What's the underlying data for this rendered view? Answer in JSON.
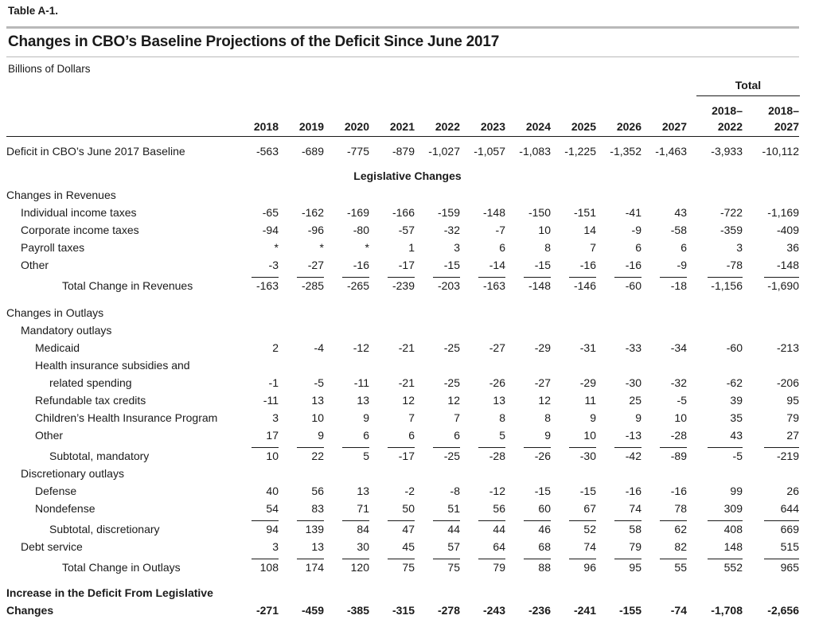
{
  "table_label": "Table A-1.",
  "title": "Changes in CBO’s Baseline Projections of the Deficit Since June 2017",
  "units": "Billions of Dollars",
  "total_header": "Total",
  "columns": [
    "2018",
    "2019",
    "2020",
    "2021",
    "2022",
    "2023",
    "2024",
    "2025",
    "2026",
    "2027"
  ],
  "total_columns": [
    {
      "line1": "2018–",
      "line2": "2022"
    },
    {
      "line1": "2018–",
      "line2": "2027"
    }
  ],
  "section_legislative": "Legislative Changes",
  "rows": [
    {
      "id": "baseline",
      "label": "Deficit in CBO’s June 2017 Baseline",
      "values": [
        "-563",
        "-689",
        "-775",
        "-879",
        "-1,027",
        "-1,057",
        "-1,083",
        "-1,225",
        "-1,352",
        "-1,463",
        "-3,933",
        "-10,112"
      ]
    },
    {
      "id": "rev-head",
      "label": "Changes in Revenues"
    },
    {
      "id": "rev-individual",
      "label": "Individual income taxes",
      "values": [
        "-65",
        "-162",
        "-169",
        "-166",
        "-159",
        "-148",
        "-150",
        "-151",
        "-41",
        "43",
        "-722",
        "-1,169"
      ]
    },
    {
      "id": "rev-corporate",
      "label": "Corporate income taxes",
      "values": [
        "-94",
        "-96",
        "-80",
        "-57",
        "-32",
        "-7",
        "10",
        "14",
        "-9",
        "-58",
        "-359",
        "-409"
      ]
    },
    {
      "id": "rev-payroll",
      "label": "Payroll taxes",
      "values": [
        "*",
        "*",
        "*",
        "1",
        "3",
        "6",
        "8",
        "7",
        "6",
        "6",
        "3",
        "36"
      ]
    },
    {
      "id": "rev-other",
      "label": "Other",
      "values": [
        "-3",
        "-27",
        "-16",
        "-17",
        "-15",
        "-14",
        "-15",
        "-16",
        "-16",
        "-9",
        "-78",
        "-148"
      ]
    },
    {
      "id": "rev-total",
      "label": "Total Change in Revenues",
      "values": [
        "-163",
        "-285",
        "-265",
        "-239",
        "-203",
        "-163",
        "-148",
        "-146",
        "-60",
        "-18",
        "-1,156",
        "-1,690"
      ]
    },
    {
      "id": "out-head",
      "label": "Changes in Outlays"
    },
    {
      "id": "mand-head",
      "label": "Mandatory outlays"
    },
    {
      "id": "medicaid",
      "label": "Medicaid",
      "values": [
        "2",
        "-4",
        "-12",
        "-21",
        "-25",
        "-27",
        "-29",
        "-31",
        "-33",
        "-34",
        "-60",
        "-213"
      ]
    },
    {
      "id": "health-1",
      "label": "Health insurance subsidies and"
    },
    {
      "id": "health-2",
      "label": "related spending",
      "values": [
        "-1",
        "-5",
        "-11",
        "-21",
        "-25",
        "-26",
        "-27",
        "-29",
        "-30",
        "-32",
        "-62",
        "-206"
      ]
    },
    {
      "id": "refundable",
      "label": "Refundable tax credits",
      "values": [
        "-11",
        "13",
        "13",
        "12",
        "12",
        "13",
        "12",
        "11",
        "25",
        "-5",
        "39",
        "95"
      ]
    },
    {
      "id": "chip",
      "label": "Children’s Health Insurance Program",
      "values": [
        "3",
        "10",
        "9",
        "7",
        "7",
        "8",
        "8",
        "9",
        "9",
        "10",
        "35",
        "79"
      ]
    },
    {
      "id": "mand-other",
      "label": "Other",
      "values": [
        "17",
        "9",
        "6",
        "6",
        "6",
        "5",
        "9",
        "10",
        "-13",
        "-28",
        "43",
        "27"
      ]
    },
    {
      "id": "mand-sub",
      "label": "Subtotal, mandatory",
      "values": [
        "10",
        "22",
        "5",
        "-17",
        "-25",
        "-28",
        "-26",
        "-30",
        "-42",
        "-89",
        "-5",
        "-219"
      ]
    },
    {
      "id": "disc-head",
      "label": "Discretionary outlays"
    },
    {
      "id": "defense",
      "label": "Defense",
      "values": [
        "40",
        "56",
        "13",
        "-2",
        "-8",
        "-12",
        "-15",
        "-15",
        "-16",
        "-16",
        "99",
        "26"
      ]
    },
    {
      "id": "nondefense",
      "label": "Nondefense",
      "values": [
        "54",
        "83",
        "71",
        "50",
        "51",
        "56",
        "60",
        "67",
        "74",
        "78",
        "309",
        "644"
      ]
    },
    {
      "id": "disc-sub",
      "label": "Subtotal, discretionary",
      "values": [
        "94",
        "139",
        "84",
        "47",
        "44",
        "44",
        "46",
        "52",
        "58",
        "62",
        "408",
        "669"
      ]
    },
    {
      "id": "debt",
      "label": "Debt service",
      "values": [
        "3",
        "13",
        "30",
        "45",
        "57",
        "64",
        "68",
        "74",
        "79",
        "82",
        "148",
        "515"
      ]
    },
    {
      "id": "out-total",
      "label": "Total Change in Outlays",
      "values": [
        "108",
        "174",
        "120",
        "75",
        "75",
        "79",
        "88",
        "96",
        "95",
        "55",
        "552",
        "965"
      ]
    },
    {
      "id": "inc-1",
      "label": "Increase in the Deficit From Legislative"
    },
    {
      "id": "inc-2",
      "label": "Changes",
      "values": [
        "-271",
        "-459",
        "-385",
        "-315",
        "-278",
        "-243",
        "-236",
        "-241",
        "-155",
        "-74",
        "-1,708",
        "-2,656"
      ]
    }
  ]
}
